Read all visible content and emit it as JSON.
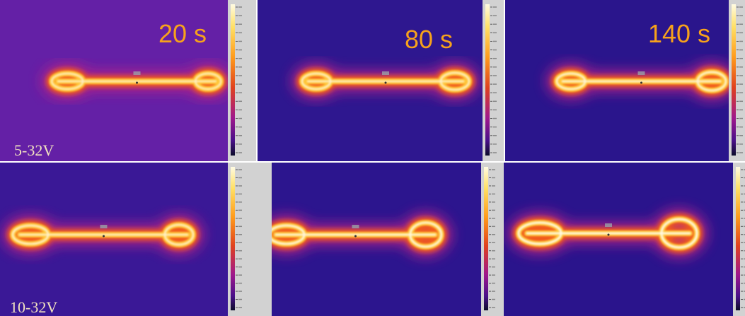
{
  "panels": {
    "times": [
      "20 s",
      "80 s",
      "140 s"
    ],
    "voltages": [
      "5-32V",
      "10-32V"
    ]
  }
}
